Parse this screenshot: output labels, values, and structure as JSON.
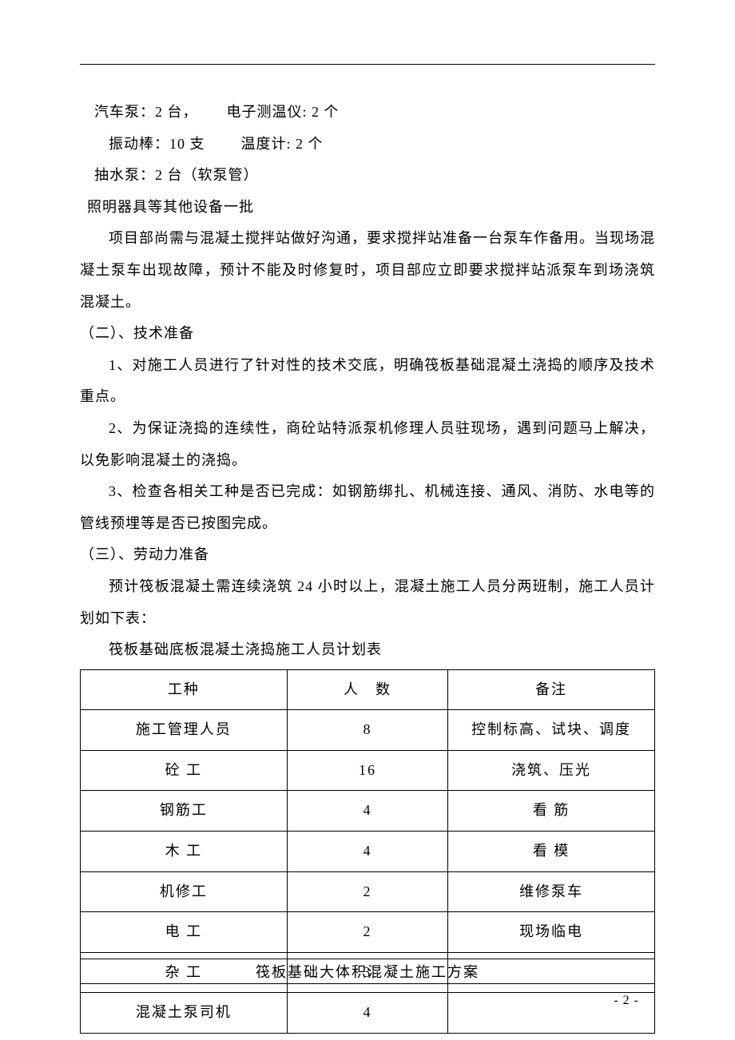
{
  "equipment": {
    "line1_left": "汽车泵：2 台，",
    "line1_right": "电子测温仪: 2 个",
    "line2_left": "振动棒：10 支",
    "line2_right": "温度计: 2 个",
    "line3": "抽水泵：2 台（软泵管）",
    "line4": "照明器具等其他设备一批"
  },
  "para1": "项目部尚需与混凝土搅拌站做好沟通，要求搅拌站准备一台泵车作备用。当现场混凝土泵车出现故障，预计不能及时修复时，项目部应立即要求搅拌站派泵车到场浇筑混凝土。",
  "h2": "（二）、技术准备",
  "p2_1": "1、对施工人员进行了针对性的技术交底，明确筏板基础混凝土浇捣的顺序及技术重点。",
  "p2_2": "2、为保证浇捣的连续性，商砼站特派泵机修理人员驻现场，遇到问题马上解决，以免影响混凝土的浇捣。",
  "p2_3": "3、检查各相关工种是否已完成：如钢筋绑扎、机械连接、通风、消防、水电等的管线预埋等是否已按图完成。",
  "h3": "（三）、劳动力准备",
  "p3_1": "预计筏板混凝土需连续浇筑 24 小时以上，混凝土施工人员分两班制，施工人员计划如下表：",
  "table_title": "筏板基础底板混凝土浇捣施工人员计划表",
  "table": {
    "columns": [
      "工种",
      "人　数",
      "备注"
    ],
    "rows": [
      [
        "施工管理人员",
        "8",
        "控制标高、试块、调度"
      ],
      [
        "砼 工",
        "16",
        "浇筑、压光"
      ],
      [
        "钢筋工",
        "4",
        "看 筋"
      ],
      [
        "木 工",
        "4",
        "看 模"
      ],
      [
        "机修工",
        "2",
        "维修泵车"
      ],
      [
        "电 工",
        "2",
        "现场临电"
      ],
      [
        "杂 工",
        "3",
        ""
      ],
      [
        "混凝土泵司机",
        "4",
        ""
      ]
    ],
    "col_widths": [
      "36%",
      "28%",
      "36%"
    ],
    "border_color": "#000000",
    "font_size": 18
  },
  "footer_title": "筏板基础大体积混凝土施工方案",
  "page_number": "- 2 -",
  "colors": {
    "text": "#000000",
    "background": "#ffffff",
    "rule": "#000000"
  },
  "typography": {
    "body_font": "SimSun",
    "body_size": 18,
    "line_height": 2.2
  }
}
